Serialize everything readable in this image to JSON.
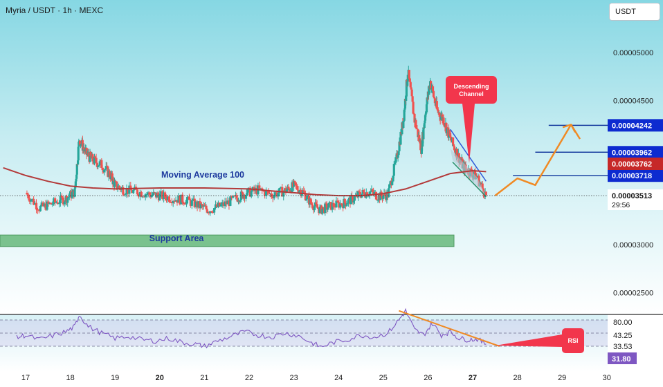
{
  "header": {
    "title": "Myria / USDT · 1h · MEXC",
    "currency_button": "USDT"
  },
  "price_labels": {
    "current_price": "0.00003513",
    "countdown": "29:56",
    "ma_value": "0.00003762"
  },
  "annotations": {
    "moving_average": "Moving Average 100",
    "support": "Support Area",
    "descending_channel": "Descending Channel",
    "rsi_tag": "RSI"
  },
  "chart_data": [
    {
      "type": "line",
      "subtype": "candlestick_price",
      "x_ticks": [
        "17",
        "18",
        "19",
        "20",
        "21",
        "22",
        "23",
        "24",
        "25",
        "26",
        "27",
        "28",
        "29",
        "30"
      ],
      "y_ticks": [
        "0.00005000",
        "0.00004500",
        "0.00003000",
        "0.00002500"
      ],
      "ylim": [
        2.2e-05,
        5.4e-05
      ],
      "grid": false,
      "close_series": [
        [
          17.0,
          3.54e-05
        ],
        [
          17.3,
          3.38e-05
        ],
        [
          17.6,
          3.43e-05
        ],
        [
          17.9,
          3.48e-05
        ],
        [
          18.1,
          3.55e-05
        ],
        [
          18.2,
          4.1e-05
        ],
        [
          18.35,
          3.95e-05
        ],
        [
          18.5,
          3.88e-05
        ],
        [
          18.7,
          3.83e-05
        ],
        [
          18.9,
          3.72e-05
        ],
        [
          19.0,
          3.62e-05
        ],
        [
          19.2,
          3.57e-05
        ],
        [
          19.5,
          3.55e-05
        ],
        [
          19.8,
          3.52e-05
        ],
        [
          20.0,
          3.51e-05
        ],
        [
          20.3,
          3.48e-05
        ],
        [
          20.6,
          3.46e-05
        ],
        [
          20.9,
          3.4e-05
        ],
        [
          21.1,
          3.36e-05
        ],
        [
          21.4,
          3.41e-05
        ],
        [
          21.7,
          3.48e-05
        ],
        [
          21.9,
          3.53e-05
        ],
        [
          22.2,
          3.57e-05
        ],
        [
          22.5,
          3.52e-05
        ],
        [
          22.8,
          3.56e-05
        ],
        [
          23.0,
          3.61e-05
        ],
        [
          23.2,
          3.55e-05
        ],
        [
          23.4,
          3.42e-05
        ],
        [
          23.6,
          3.36e-05
        ],
        [
          23.8,
          3.4e-05
        ],
        [
          24.1,
          3.43e-05
        ],
        [
          24.3,
          3.47e-05
        ],
        [
          24.5,
          3.53e-05
        ],
        [
          24.7,
          3.55e-05
        ],
        [
          24.9,
          3.5e-05
        ],
        [
          25.1,
          3.52e-05
        ],
        [
          25.3,
          3.9e-05
        ],
        [
          25.45,
          4.3e-05
        ],
        [
          25.55,
          4.8e-05
        ],
        [
          25.7,
          4.3e-05
        ],
        [
          25.85,
          4e-05
        ],
        [
          25.95,
          4.4e-05
        ],
        [
          26.05,
          4.7e-05
        ],
        [
          26.2,
          4.4e-05
        ],
        [
          26.35,
          4.3e-05
        ],
        [
          26.5,
          4.1e-05
        ],
        [
          26.65,
          3.95e-05
        ],
        [
          26.8,
          3.8e-05
        ],
        [
          26.95,
          3.76e-05
        ],
        [
          27.1,
          3.7e-05
        ],
        [
          27.3,
          3.51e-05
        ]
      ],
      "series": [
        {
          "name": "Moving Average 100",
          "color": "#b33a3a",
          "points": [
            [
              16.5,
              3.8e-05
            ],
            [
              17.0,
              3.72e-05
            ],
            [
              17.5,
              3.66e-05
            ],
            [
              18.0,
              3.61e-05
            ],
            [
              18.5,
              3.59e-05
            ],
            [
              19.0,
              3.58e-05
            ],
            [
              20.0,
              3.59e-05
            ],
            [
              21.0,
              3.59e-05
            ],
            [
              22.0,
              3.58e-05
            ],
            [
              22.5,
              3.56e-05
            ],
            [
              23.0,
              3.54e-05
            ],
            [
              23.5,
              3.52e-05
            ],
            [
              24.0,
              3.51e-05
            ],
            [
              24.5,
              3.51e-05
            ],
            [
              25.0,
              3.53e-05
            ],
            [
              25.5,
              3.58e-05
            ],
            [
              26.0,
              3.66e-05
            ],
            [
              26.5,
              3.74e-05
            ],
            [
              27.0,
              3.77e-05
            ],
            [
              27.3,
              3.76e-05
            ]
          ]
        }
      ],
      "resistance_levels": [
        {
          "label": "0.00004242",
          "value": 4.242e-05,
          "x_from": 28.7,
          "x_to": 30.0
        },
        {
          "label": "0.00003962",
          "value": 3.962e-05,
          "x_from": 28.4,
          "x_to": 30.0
        },
        {
          "label": "0.00003718",
          "value": 3.718e-05,
          "x_from": 27.9,
          "x_to": 30.0
        }
      ],
      "projection": [
        [
          27.5,
          3.51e-05
        ],
        [
          28.0,
          3.69e-05
        ],
        [
          28.4,
          3.62e-05
        ],
        [
          29.2,
          4.25e-05
        ],
        [
          29.4,
          4.1e-05
        ]
      ],
      "support_zone": [
        2.98e-05,
        3.1e-05
      ],
      "colors": {
        "up": "#26a69a",
        "down": "#ef5350",
        "ma": "#b33a3a",
        "level": "#1a3fa0",
        "projection": "#f08a24",
        "price_label": "#0d2bd0",
        "ma_label": "#c62828"
      }
    },
    {
      "type": "line",
      "subtype": "rsi",
      "y_ticks": [
        "80.00",
        "43.25",
        "33.53"
      ],
      "current_value": "31.80",
      "series": [
        {
          "name": "RSI",
          "color": "#7e57c2",
          "points": [
            [
              16.8,
              43
            ],
            [
              17.0,
              47
            ],
            [
              17.3,
              40
            ],
            [
              17.6,
              46
            ],
            [
              17.9,
              52
            ],
            [
              18.1,
              60
            ],
            [
              18.2,
              78
            ],
            [
              18.4,
              60
            ],
            [
              18.7,
              50
            ],
            [
              19.0,
              42
            ],
            [
              19.3,
              45
            ],
            [
              19.6,
              40
            ],
            [
              19.9,
              38
            ],
            [
              20.2,
              42
            ],
            [
              20.5,
              36
            ],
            [
              20.8,
              33
            ],
            [
              21.0,
              30
            ],
            [
              21.3,
              38
            ],
            [
              21.6,
              45
            ],
            [
              21.9,
              52
            ],
            [
              22.2,
              47
            ],
            [
              22.5,
              44
            ],
            [
              22.8,
              50
            ],
            [
              23.1,
              46
            ],
            [
              23.4,
              35
            ],
            [
              23.6,
              29
            ],
            [
              23.9,
              36
            ],
            [
              24.2,
              40
            ],
            [
              24.5,
              47
            ],
            [
              24.8,
              44
            ],
            [
              25.1,
              50
            ],
            [
              25.35,
              70
            ],
            [
              25.5,
              84
            ],
            [
              25.7,
              55
            ],
            [
              25.9,
              47
            ],
            [
              26.1,
              65
            ],
            [
              26.3,
              47
            ],
            [
              26.5,
              52
            ],
            [
              26.7,
              42
            ],
            [
              26.9,
              40
            ],
            [
              27.1,
              41
            ],
            [
              27.3,
              33
            ]
          ]
        }
      ],
      "divergence_line": [
        [
          25.35,
          84
        ],
        [
          27.6,
          30
        ]
      ],
      "levels": [
        70,
        50,
        30
      ]
    }
  ]
}
